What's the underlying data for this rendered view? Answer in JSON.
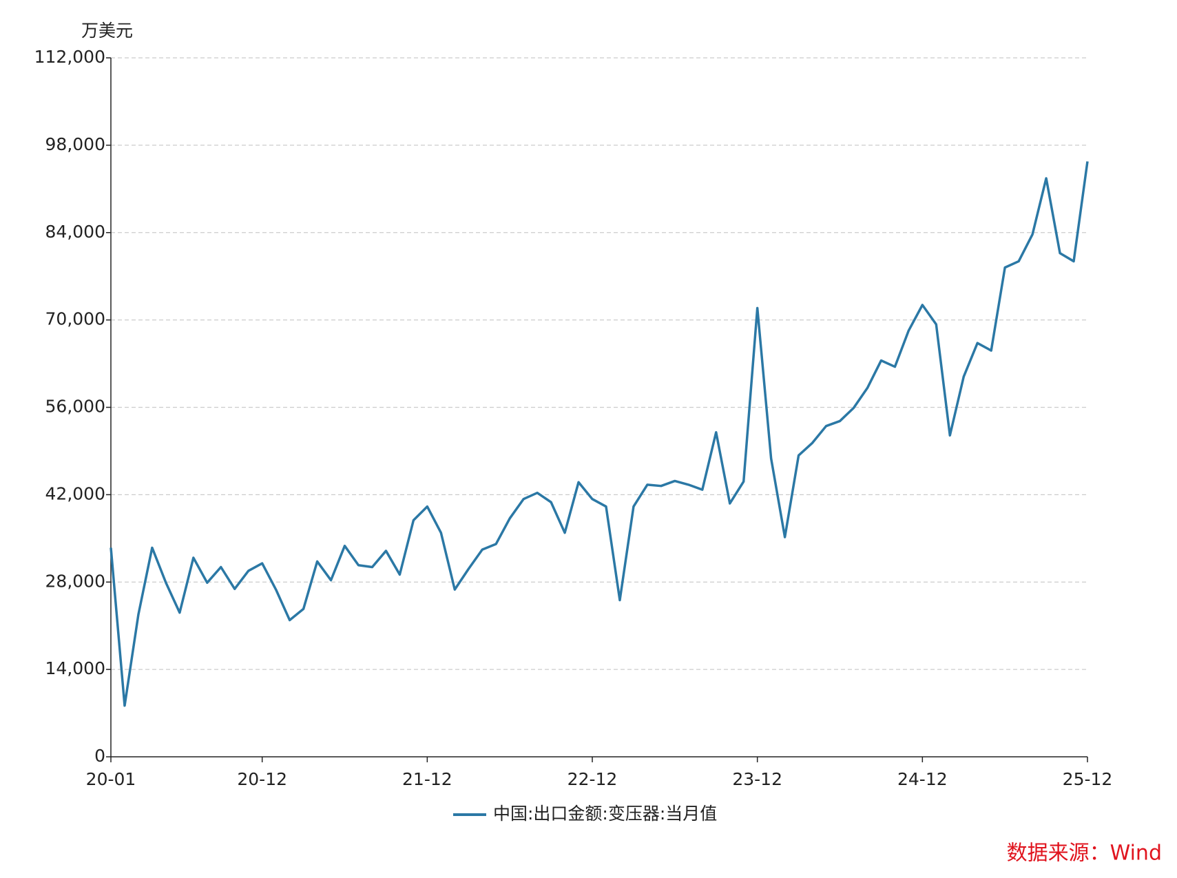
{
  "chart_data": {
    "type": "line",
    "y_unit": "万美元",
    "categories": [
      "20-01",
      null,
      null,
      null,
      null,
      null,
      null,
      null,
      null,
      null,
      null,
      "20-12",
      null,
      null,
      null,
      null,
      null,
      null,
      null,
      null,
      null,
      null,
      null,
      "21-12",
      null,
      null,
      null,
      null,
      null,
      null,
      null,
      null,
      null,
      null,
      null,
      "22-12",
      null,
      null,
      null,
      null,
      null,
      null,
      null,
      null,
      null,
      null,
      null,
      "23-12",
      null,
      null,
      null,
      null,
      null,
      null,
      null,
      null,
      null,
      null,
      null,
      "24-12",
      null,
      null,
      null,
      null,
      null,
      null,
      null,
      null,
      null,
      null,
      null,
      "25-12"
    ],
    "series": [
      {
        "name": "中国:出口金额:变压器:当月值",
        "color": "#2b78a5",
        "values": [
          33500,
          8200,
          22800,
          33500,
          27900,
          23100,
          31900,
          27900,
          30400,
          26900,
          29800,
          31000,
          26800,
          21900,
          23700,
          31300,
          28300,
          33800,
          30700,
          30400,
          33000,
          29200,
          37900,
          40100,
          35900,
          26800,
          30100,
          33200,
          34100,
          38200,
          41300,
          42300,
          40800,
          35900,
          44000,
          41300,
          40100,
          25100,
          40100,
          43600,
          43400,
          44200,
          43600,
          42800,
          52000,
          40600,
          44100,
          71900,
          47800,
          35200,
          48300,
          50300,
          53000,
          53800,
          55900,
          59100,
          63500,
          62500,
          68300,
          72400,
          69300,
          51500,
          60900,
          66300,
          65100,
          78400,
          79400,
          83700,
          92700,
          80700,
          79400,
          95400
        ]
      }
    ],
    "ylim": [
      0,
      112000
    ],
    "yticks": [
      0,
      {
        "value": 14000,
        "label": "14,000"
      },
      {
        "value": 28000,
        "label": "28,000"
      },
      {
        "value": 42000,
        "label": "42,000"
      },
      {
        "value": 56000,
        "label": "56,000"
      },
      {
        "value": 70000,
        "label": "70,000"
      },
      {
        "value": 84000,
        "label": "84,000"
      },
      {
        "value": 98000,
        "label": "98,000"
      },
      {
        "value": 112000,
        "label": "112,000"
      }
    ],
    "grid": true,
    "legend": "bottom",
    "source": "数据来源：Wind"
  }
}
